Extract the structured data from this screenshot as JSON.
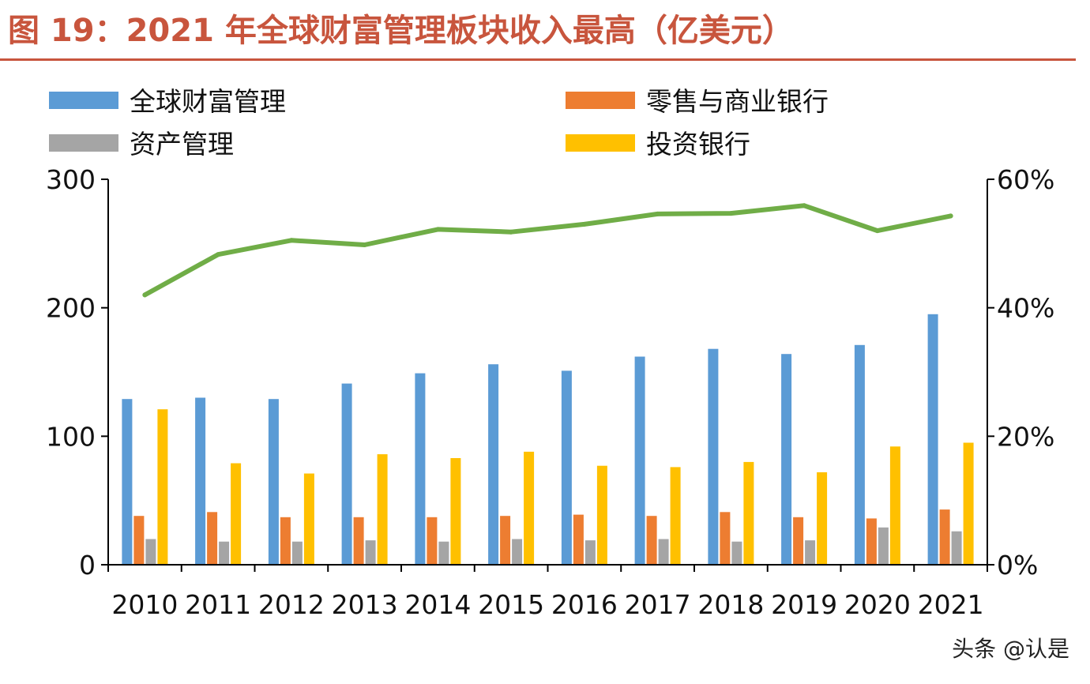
{
  "figure": {
    "title": "图 19：2021 年全球财富管理板块收入最高（亿美元）",
    "watermark": "头条 @认是"
  },
  "chart_data": {
    "type": "bar",
    "categories": [
      "2010",
      "2011",
      "2012",
      "2013",
      "2014",
      "2015",
      "2016",
      "2017",
      "2018",
      "2019",
      "2020",
      "2021"
    ],
    "series": [
      {
        "name": "全球财富管理",
        "kind": "bar",
        "axis": "left",
        "color": "#5b9bd5",
        "values": [
          129,
          130,
          129,
          141,
          149,
          156,
          151,
          162,
          168,
          164,
          171,
          195
        ]
      },
      {
        "name": "零售与商业银行",
        "kind": "bar",
        "axis": "left",
        "color": "#ed7d31",
        "values": [
          38,
          41,
          37,
          37,
          37,
          38,
          39,
          38,
          41,
          37,
          36,
          43
        ]
      },
      {
        "name": "资产管理",
        "kind": "bar",
        "axis": "left",
        "color": "#a5a5a5",
        "values": [
          20,
          18,
          18,
          19,
          18,
          20,
          19,
          20,
          18,
          19,
          29,
          26
        ]
      },
      {
        "name": "投资银行",
        "kind": "bar",
        "axis": "left",
        "color": "#ffc000",
        "values": [
          121,
          79,
          71,
          86,
          83,
          88,
          77,
          76,
          80,
          72,
          92,
          95
        ]
      },
      {
        "kind": "line",
        "axis": "right",
        "color": "#70ad47",
        "values": [
          0.42,
          0.483,
          0.505,
          0.498,
          0.522,
          0.518,
          0.53,
          0.546,
          0.547,
          0.559,
          0.52,
          0.543
        ]
      }
    ],
    "y_left": {
      "min": 0,
      "max": 300,
      "ticks": [
        "0",
        "100",
        "200",
        "300"
      ]
    },
    "y_right": {
      "min": 0,
      "max": 0.6,
      "ticks": [
        "0%",
        "20%",
        "40%",
        "60%"
      ]
    },
    "legend": {
      "placement": "top",
      "columns": 2
    },
    "grid": false
  }
}
